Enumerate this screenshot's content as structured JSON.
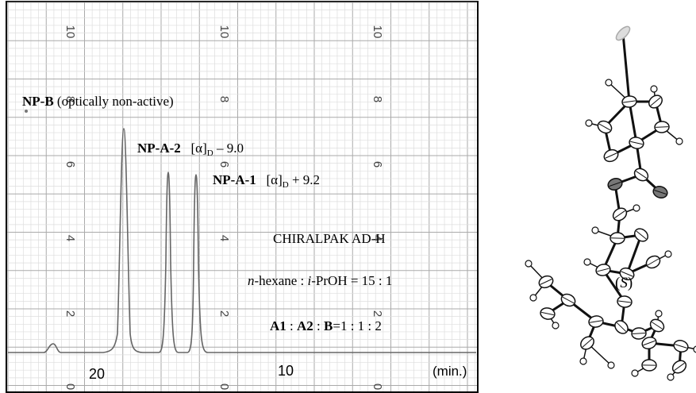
{
  "chromatogram": {
    "np_b": {
      "name": "NP-B",
      "note": "(optically non-active)"
    },
    "np_a2": {
      "name": "NP-A-2",
      "alpha": "[α]",
      "sub": "D",
      "value": "– 9.0"
    },
    "np_a1": {
      "name": "NP-A-1",
      "alpha": "[α]",
      "sub": "D",
      "value": "+ 9.2"
    },
    "column": "CHIRALPAK AD-H",
    "eluent_parts": [
      "n",
      "-hexane : ",
      "i",
      "-PrOH = 15 : 1"
    ],
    "ratio_parts": [
      "A1",
      " : ",
      "A2",
      " : ",
      "B",
      "=1 : 1 : 2"
    ],
    "x_labels": [
      "20",
      "10",
      "(min.)"
    ],
    "grid_labels": [
      "10",
      "8",
      "6",
      "4",
      "2",
      "0"
    ]
  },
  "structure": {
    "label_parts": [
      "(",
      "S",
      ")"
    ]
  }
}
